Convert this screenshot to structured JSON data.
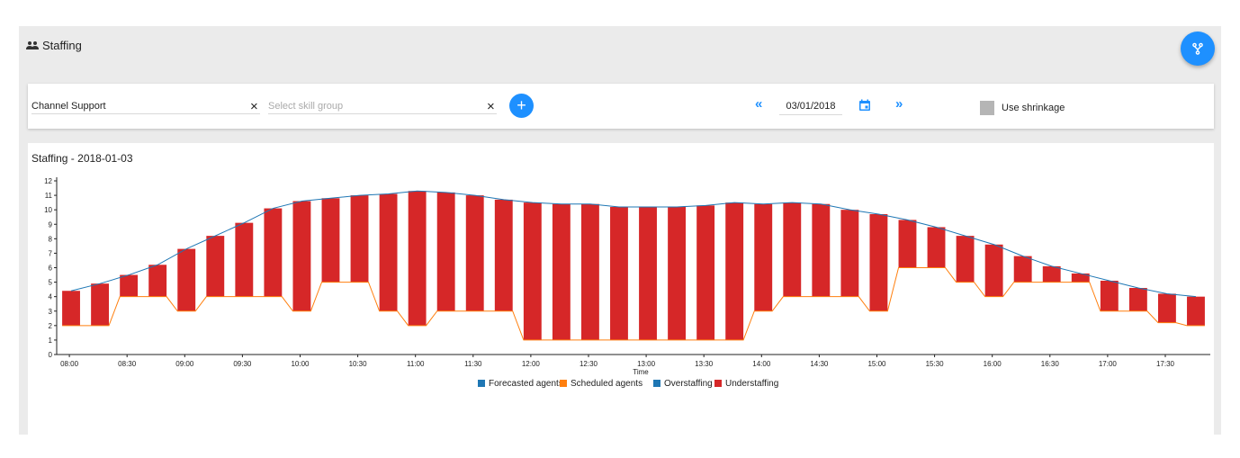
{
  "header": {
    "title": "Staffing"
  },
  "filters": {
    "channel_value": "Channel Support",
    "skill_placeholder": "Select skill group",
    "add_label": "+",
    "prev_label": "«",
    "next_label": "»",
    "date_value": "03/01/2018",
    "use_shrinkage_label": "Use shrinkage",
    "use_shrinkage_checked": false
  },
  "colors": {
    "accent": "#1e90ff",
    "forecasted": "#1f77b4",
    "scheduled": "#ff7f0e",
    "overstaffing": "#1f77b4",
    "understaffing": "#d62728"
  },
  "chart_data": {
    "type": "bar",
    "title": "Staffing - 2018-01-03",
    "xlabel": "Time",
    "ylabel": "",
    "ylim": [
      0,
      12
    ],
    "yticks": [
      0,
      1,
      2,
      3,
      4,
      5,
      6,
      7,
      8,
      9,
      10,
      11,
      12
    ],
    "x": [
      "08:00",
      "08:15",
      "08:30",
      "08:45",
      "09:00",
      "09:15",
      "09:30",
      "09:45",
      "10:00",
      "10:15",
      "10:30",
      "10:45",
      "11:00",
      "11:15",
      "11:30",
      "11:45",
      "12:00",
      "12:15",
      "12:30",
      "12:45",
      "13:00",
      "13:15",
      "13:30",
      "13:45",
      "14:00",
      "14:15",
      "14:30",
      "14:45",
      "15:00",
      "15:15",
      "15:30",
      "15:45",
      "16:00",
      "16:15",
      "16:30",
      "16:45",
      "17:00",
      "17:15",
      "17:30",
      "17:45"
    ],
    "xtick_labels": [
      "08:00",
      "08:30",
      "09:00",
      "09:30",
      "10:00",
      "10:30",
      "11:00",
      "11:30",
      "12:00",
      "12:30",
      "13:00",
      "13:30",
      "14:00",
      "14:30",
      "15:00",
      "15:30",
      "16:00",
      "16:30",
      "17:00",
      "17:30"
    ],
    "series": [
      {
        "name": "Forecasted agents",
        "values": [
          4.4,
          4.9,
          5.5,
          6.2,
          7.3,
          8.2,
          9.1,
          10.1,
          10.6,
          10.8,
          11.0,
          11.1,
          11.3,
          11.2,
          11.0,
          10.7,
          10.5,
          10.4,
          10.4,
          10.2,
          10.2,
          10.2,
          10.3,
          10.5,
          10.4,
          10.5,
          10.4,
          10.0,
          9.7,
          9.3,
          8.8,
          8.2,
          7.6,
          6.8,
          6.1,
          5.6,
          5.1,
          4.6,
          4.2,
          4.0
        ]
      },
      {
        "name": "Scheduled agents",
        "values": [
          2,
          2,
          4,
          4,
          3,
          4,
          4,
          4,
          3,
          5,
          5,
          3,
          2,
          3,
          3,
          3,
          1,
          1,
          1,
          1,
          1,
          1,
          1,
          1,
          3,
          4,
          4,
          4,
          3,
          6,
          6,
          5,
          4,
          5,
          5,
          5,
          3,
          3,
          2.2,
          2
        ]
      },
      {
        "name": "Overstaffing",
        "values": [
          0,
          0,
          0,
          0,
          0,
          0,
          0,
          0,
          0,
          0,
          0,
          0,
          0,
          0,
          0,
          0,
          0,
          0,
          0,
          0,
          0,
          0,
          0,
          0,
          0,
          0,
          0,
          0,
          0,
          0,
          0,
          0,
          0,
          0,
          0,
          0,
          0,
          0,
          0,
          0
        ]
      },
      {
        "name": "Understaffing",
        "values": [
          2.4,
          2.9,
          1.5,
          2.2,
          4.3,
          4.2,
          5.1,
          6.1,
          7.6,
          5.8,
          6.0,
          8.1,
          9.3,
          8.2,
          8.0,
          7.7,
          9.5,
          9.4,
          9.4,
          9.2,
          9.2,
          9.2,
          9.3,
          9.5,
          7.4,
          6.5,
          6.4,
          6.0,
          6.7,
          3.3,
          2.8,
          3.2,
          3.6,
          1.8,
          1.1,
          0.6,
          2.1,
          1.6,
          2.0,
          2.0
        ]
      }
    ],
    "legend": [
      "Forecasted agents",
      "Scheduled agents",
      "Overstaffing",
      "Understaffing"
    ],
    "legend_placement": "bottom",
    "grid": false
  }
}
